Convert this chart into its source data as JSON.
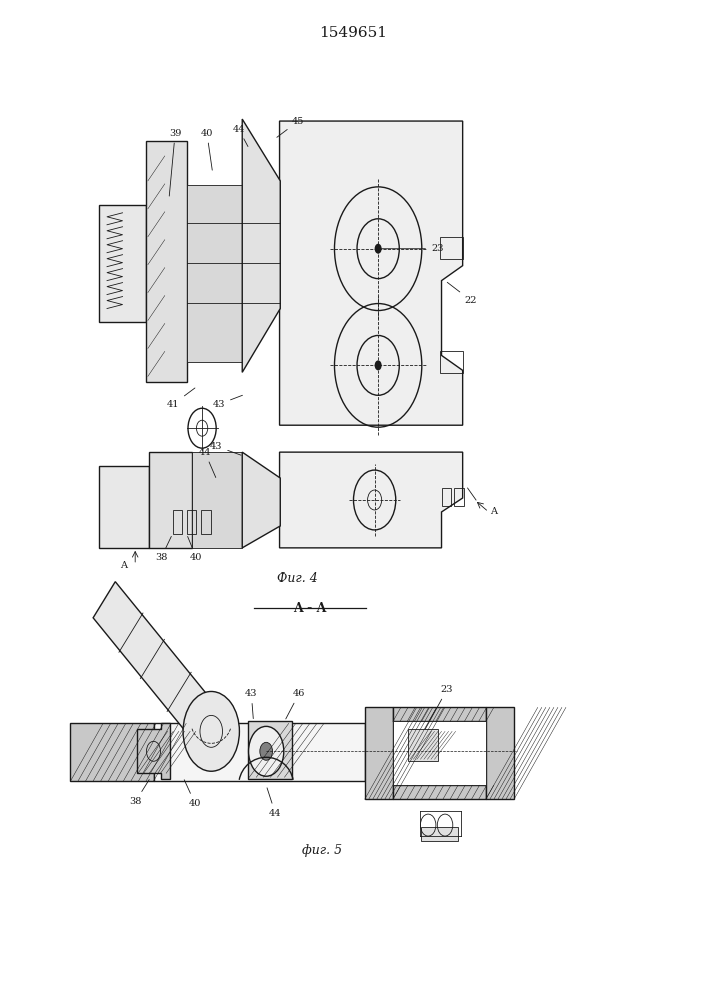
{
  "title": "1549651",
  "title_fontsize": 11,
  "background_color": "#ffffff",
  "line_color": "#1a1a1a",
  "fig_width": 7.07,
  "fig_height": 10.0,
  "dpi": 100,
  "fig4_caption": "Фиг. 4",
  "fig5_caption": "фиг. 5",
  "aa_label": "A - A"
}
